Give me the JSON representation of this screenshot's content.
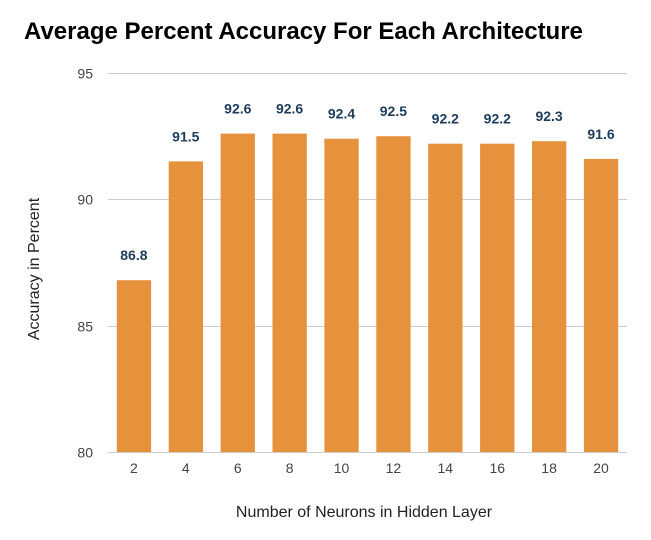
{
  "chart_data": {
    "type": "bar",
    "title": "Average Percent Accuracy For Each Architecture",
    "xlabel": "Number of Neurons in Hidden Layer",
    "ylabel": "Accuracy in Percent",
    "categories": [
      "2",
      "4",
      "6",
      "8",
      "10",
      "12",
      "14",
      "16",
      "18",
      "20"
    ],
    "values": [
      86.8,
      91.5,
      92.6,
      92.6,
      92.4,
      92.5,
      92.2,
      92.2,
      92.3,
      91.6
    ],
    "data_labels": [
      "86.8",
      "91.5",
      "92.6",
      "92.6",
      "92.4",
      "92.5",
      "92.2",
      "92.2",
      "92.3",
      "91.6"
    ],
    "ylim": [
      80,
      95
    ],
    "yticks": [
      80,
      85,
      90,
      95
    ],
    "ytick_labels": [
      "80",
      "85",
      "90",
      "95"
    ],
    "grid": true,
    "legend": "none",
    "colors": {
      "bar": "#e6913b",
      "data_label": "#1c3d5e",
      "grid": "#cccccc"
    }
  }
}
